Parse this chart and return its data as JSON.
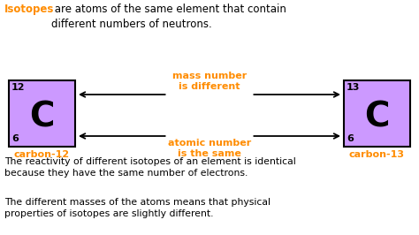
{
  "bg_color": "#ffffff",
  "purple": "#cc99ff",
  "orange": "#ff8c00",
  "black": "#000000",
  "intro_word": "Isotopes",
  "intro_rest": " are atoms of the same element that contain\ndifferent numbers of neutrons.",
  "line1_text": "mass number\nis different",
  "line2_text": "atomic number\nis the same",
  "caption1": "carbon-12",
  "caption2": "carbon-13",
  "body1": "The reactivity of different isotopes of an element is identical\nbecause they have the same number of electrons.",
  "body2": "The different masses of the atoms means that physical\nproperties of isotopes are slightly different.",
  "fig_w": 4.74,
  "fig_h": 2.66,
  "dpi": 100
}
